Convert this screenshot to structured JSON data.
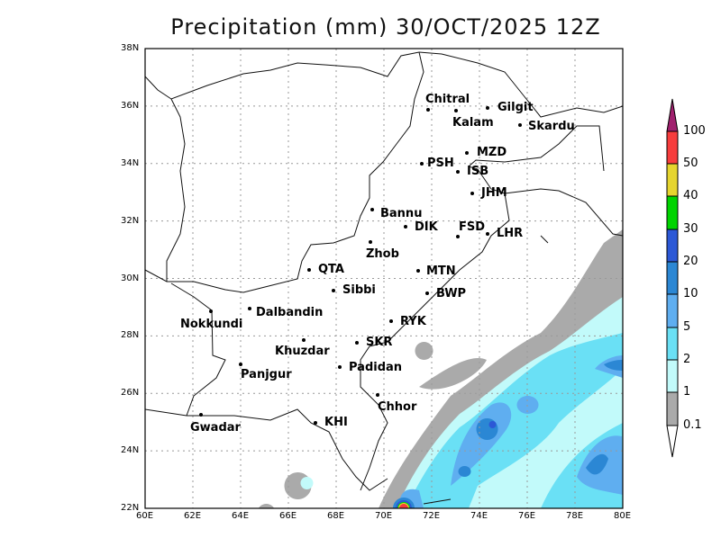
{
  "title": "Precipitation (mm) 30/OCT/2025 12Z",
  "map": {
    "region": "Pakistan",
    "lon_ticks": [
      "60E",
      "62E",
      "64E",
      "66E",
      "68E",
      "70E",
      "72E",
      "74E",
      "76E",
      "78E",
      "80E"
    ],
    "lat_ticks": [
      "38N",
      "36N",
      "34N",
      "32N",
      "30N",
      "28N",
      "26N",
      "24N",
      "22N"
    ],
    "grid": true,
    "cities": [
      "Chitral",
      "Kalam",
      "Gilgit",
      "Skardu",
      "MZD",
      "PSH",
      "ISB",
      "JHM",
      "Bannu",
      "DIK",
      "FSD",
      "LHR",
      "Zhob",
      "QTA",
      "MTN",
      "Sibbi",
      "BWP",
      "Dalbandin",
      "Nokkundi",
      "RYK",
      "Khuzdar",
      "SKR",
      "Panjgur",
      "Padidan",
      "Chhor",
      "Gwadar",
      "KHI"
    ]
  },
  "colorbar": {
    "labels": [
      "100",
      "50",
      "40",
      "30",
      "20",
      "10",
      "5",
      "2",
      "1",
      "0.1"
    ],
    "colors": [
      "#a0206e",
      "#f73d3d",
      "#e6d52f",
      "#00d400",
      "#2c58d6",
      "#2b87d4",
      "#5faef0",
      "#6ae0f5",
      "#c2fafa",
      "#aaaaaa",
      "#ffffff"
    ]
  }
}
